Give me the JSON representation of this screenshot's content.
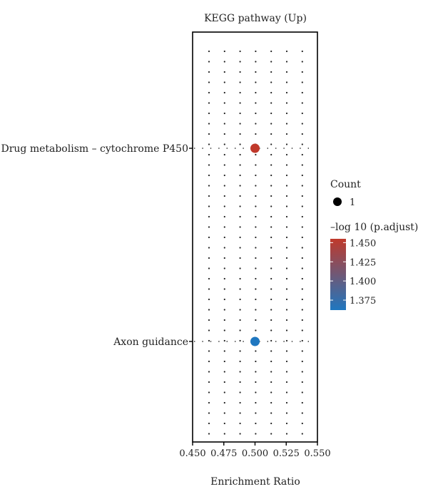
{
  "chart_data": {
    "type": "scatter",
    "title": "KEGG pathway (Up)",
    "xlabel": "Enrichment Ratio",
    "ylabel": "",
    "xlim": [
      0.45,
      0.55
    ],
    "x_ticks": [
      0.45,
      0.475,
      0.5,
      0.525,
      0.55
    ],
    "x_tick_labels": [
      "0.450",
      "0.475",
      "0.500",
      "0.525",
      "0.550"
    ],
    "categories": [
      "Drug metabolism – cytochrome P450",
      "Axon guidance"
    ],
    "points": [
      {
        "category": "Drug metabolism – cytochrome P450",
        "x": 0.5,
        "count": 1,
        "neg_log10_padjust": 1.45,
        "color": "#c0392b"
      },
      {
        "category": "Axon guidance",
        "x": 0.5,
        "count": 1,
        "neg_log10_padjust": 1.362,
        "color": "#1f77c0"
      }
    ],
    "grid": "dotted",
    "size_legend": {
      "title": "Count",
      "labels": [
        "1"
      ]
    },
    "color_legend": {
      "title": "–log 10 (p.adjust)",
      "ticks": [
        1.45,
        1.425,
        1.4,
        1.375
      ],
      "tick_labels": [
        "1.450",
        "1.425",
        "1.400",
        "1.375"
      ],
      "range": [
        1.362,
        1.455
      ],
      "low_color": "#1f77c0",
      "high_color": "#c0392b"
    },
    "legend_position": "right"
  }
}
